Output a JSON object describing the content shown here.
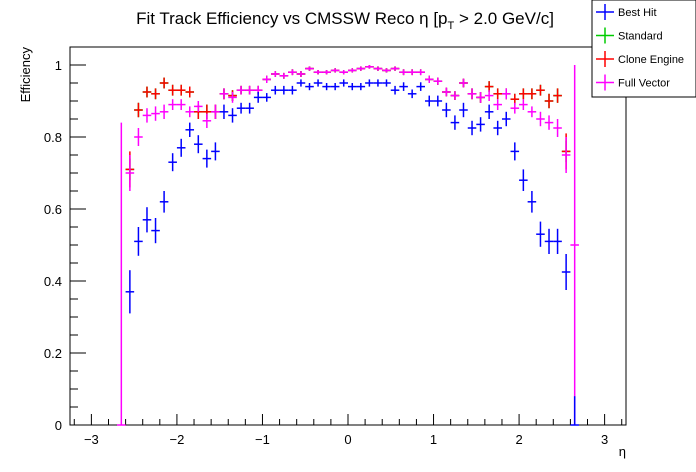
{
  "chart_data": {
    "type": "scatter",
    "title": "Fit Track Efficiency vs CMSSW Reco η [p_T > 2.0 GeV/c]",
    "title_parts": {
      "main": "Fit Track Efficiency vs CMSSW Reco η [p",
      "sub": "T",
      "tail": " > 2.0 GeV/c]"
    },
    "xlabel": "η",
    "ylabel": "Efficiency",
    "xlim": [
      -3.25,
      3.25
    ],
    "ylim": [
      0,
      1.05
    ],
    "xticks": [
      -3,
      -2,
      -1,
      0,
      1,
      2,
      3
    ],
    "xtick_labels": [
      "−3",
      "−2",
      "−1",
      "0",
      "1",
      "2",
      "3"
    ],
    "yticks": [
      0,
      0.2,
      0.4,
      0.6,
      0.8,
      1
    ],
    "ytick_labels": [
      "0",
      "0.2",
      "0.4",
      "0.6",
      "0.8",
      "1"
    ],
    "grid": false,
    "legend_position": "top-right",
    "bin_width": 0.1,
    "x": [
      -2.65,
      -2.55,
      -2.45,
      -2.35,
      -2.25,
      -2.15,
      -2.05,
      -1.95,
      -1.85,
      -1.75,
      -1.65,
      -1.55,
      -1.45,
      -1.35,
      -1.25,
      -1.15,
      -1.05,
      -0.95,
      -0.85,
      -0.75,
      -0.65,
      -0.55,
      -0.45,
      -0.35,
      -0.25,
      -0.15,
      -0.05,
      0.05,
      0.15,
      0.25,
      0.35,
      0.45,
      0.55,
      0.65,
      0.75,
      0.85,
      0.95,
      1.05,
      1.15,
      1.25,
      1.35,
      1.45,
      1.55,
      1.65,
      1.75,
      1.85,
      1.95,
      2.05,
      2.15,
      2.25,
      2.35,
      2.45,
      2.55,
      2.65
    ],
    "series": [
      {
        "name": "Standard",
        "color": "#00cc00",
        "values": [
          null,
          0.71,
          0.875,
          0.925,
          0.92,
          0.95,
          0.93,
          0.93,
          0.925,
          0.87,
          0.87,
          0.87,
          0.92,
          0.915,
          0.93,
          0.93,
          0.93,
          0.96,
          0.975,
          0.97,
          0.98,
          0.975,
          0.99,
          0.98,
          0.98,
          0.985,
          0.98,
          0.985,
          0.99,
          0.995,
          0.99,
          0.985,
          0.99,
          0.98,
          0.98,
          0.98,
          0.96,
          0.955,
          0.925,
          0.915,
          0.95,
          0.92,
          0.91,
          0.94,
          0.92,
          0.92,
          0.905,
          0.92,
          0.92,
          0.93,
          0.9,
          0.915,
          0.76,
          null
        ],
        "errors": [
          null,
          0.03,
          0.02,
          0.015,
          0.015,
          0.015,
          0.015,
          0.015,
          0.015,
          0.02,
          0.02,
          0.02,
          0.015,
          0.015,
          0.012,
          0.012,
          0.012,
          0.01,
          0.008,
          0.008,
          0.008,
          0.008,
          0.006,
          0.006,
          0.006,
          0.006,
          0.006,
          0.006,
          0.006,
          0.005,
          0.006,
          0.006,
          0.006,
          0.008,
          0.008,
          0.008,
          0.01,
          0.01,
          0.012,
          0.012,
          0.012,
          0.015,
          0.015,
          0.015,
          0.015,
          0.015,
          0.015,
          0.015,
          0.015,
          0.015,
          0.02,
          0.02,
          0.03,
          null
        ]
      },
      {
        "name": "Clone Engine",
        "color": "#ff0000",
        "values": [
          null,
          0.71,
          0.875,
          0.925,
          0.92,
          0.95,
          0.93,
          0.93,
          0.925,
          0.87,
          0.87,
          0.87,
          0.92,
          0.915,
          0.93,
          0.93,
          0.93,
          0.96,
          0.975,
          0.97,
          0.98,
          0.975,
          0.99,
          0.98,
          0.98,
          0.985,
          0.98,
          0.985,
          0.99,
          0.995,
          0.99,
          0.985,
          0.99,
          0.98,
          0.98,
          0.98,
          0.96,
          0.955,
          0.925,
          0.915,
          0.95,
          0.92,
          0.91,
          0.94,
          0.92,
          0.92,
          0.905,
          0.92,
          0.92,
          0.93,
          0.9,
          0.915,
          0.76,
          null
        ],
        "errors": [
          null,
          0.05,
          0.02,
          0.015,
          0.015,
          0.015,
          0.015,
          0.015,
          0.015,
          0.02,
          0.02,
          0.02,
          0.015,
          0.015,
          0.012,
          0.012,
          0.012,
          0.01,
          0.008,
          0.008,
          0.008,
          0.008,
          0.006,
          0.006,
          0.006,
          0.006,
          0.006,
          0.006,
          0.006,
          0.005,
          0.006,
          0.006,
          0.006,
          0.008,
          0.008,
          0.008,
          0.01,
          0.01,
          0.012,
          0.012,
          0.012,
          0.015,
          0.015,
          0.015,
          0.015,
          0.015,
          0.015,
          0.015,
          0.015,
          0.015,
          0.02,
          0.02,
          0.05,
          null
        ]
      },
      {
        "name": "Full Vector",
        "color": "#ff00ff",
        "values": [
          0,
          0.7,
          0.8,
          0.86,
          0.865,
          0.87,
          0.89,
          0.89,
          0.87,
          0.885,
          0.845,
          0.87,
          0.92,
          0.91,
          0.93,
          0.93,
          0.93,
          0.96,
          0.975,
          0.97,
          0.98,
          0.975,
          0.99,
          0.98,
          0.98,
          0.985,
          0.98,
          0.985,
          0.99,
          0.995,
          0.99,
          0.985,
          0.99,
          0.98,
          0.98,
          0.98,
          0.96,
          0.955,
          0.925,
          0.915,
          0.95,
          0.92,
          0.91,
          0.915,
          0.89,
          0.92,
          0.88,
          0.89,
          0.87,
          0.85,
          0.84,
          0.825,
          0.75,
          0.5
        ],
        "errors": [
          0.84,
          0.05,
          0.025,
          0.02,
          0.02,
          0.02,
          0.015,
          0.015,
          0.015,
          0.015,
          0.02,
          0.02,
          0.015,
          0.015,
          0.012,
          0.012,
          0.012,
          0.01,
          0.008,
          0.008,
          0.008,
          0.008,
          0.006,
          0.006,
          0.006,
          0.006,
          0.006,
          0.006,
          0.006,
          0.005,
          0.006,
          0.006,
          0.006,
          0.008,
          0.008,
          0.008,
          0.01,
          0.01,
          0.012,
          0.012,
          0.012,
          0.015,
          0.015,
          0.015,
          0.015,
          0.015,
          0.015,
          0.015,
          0.015,
          0.02,
          0.02,
          0.025,
          0.05,
          0.5
        ]
      },
      {
        "name": "Best Hit",
        "color": "#0000ff",
        "values": [
          null,
          0.37,
          0.51,
          0.57,
          0.54,
          0.62,
          0.73,
          0.77,
          0.82,
          0.78,
          0.74,
          0.76,
          0.87,
          0.86,
          0.88,
          0.88,
          0.91,
          0.91,
          0.93,
          0.93,
          0.93,
          0.95,
          0.94,
          0.95,
          0.94,
          0.94,
          0.95,
          0.94,
          0.94,
          0.95,
          0.95,
          0.95,
          0.93,
          0.94,
          0.92,
          0.94,
          0.9,
          0.9,
          0.875,
          0.84,
          0.875,
          0.825,
          0.835,
          0.87,
          0.825,
          0.85,
          0.76,
          0.68,
          0.62,
          0.53,
          0.51,
          0.51,
          0.425,
          0
        ],
        "errors": [
          null,
          0.06,
          0.04,
          0.035,
          0.035,
          0.03,
          0.025,
          0.025,
          0.02,
          0.025,
          0.025,
          0.025,
          0.02,
          0.02,
          0.015,
          0.015,
          0.015,
          0.012,
          0.012,
          0.012,
          0.012,
          0.01,
          0.01,
          0.01,
          0.01,
          0.01,
          0.01,
          0.01,
          0.01,
          0.01,
          0.01,
          0.01,
          0.012,
          0.012,
          0.012,
          0.012,
          0.015,
          0.015,
          0.02,
          0.02,
          0.02,
          0.02,
          0.02,
          0.02,
          0.02,
          0.02,
          0.025,
          0.03,
          0.03,
          0.035,
          0.035,
          0.035,
          0.05,
          0.08
        ]
      }
    ],
    "legend": [
      {
        "name": "Best Hit",
        "color": "#0000ff"
      },
      {
        "name": "Standard",
        "color": "#00cc00"
      },
      {
        "name": "Clone Engine",
        "color": "#ff0000"
      },
      {
        "name": "Full Vector",
        "color": "#ff00ff"
      }
    ]
  }
}
